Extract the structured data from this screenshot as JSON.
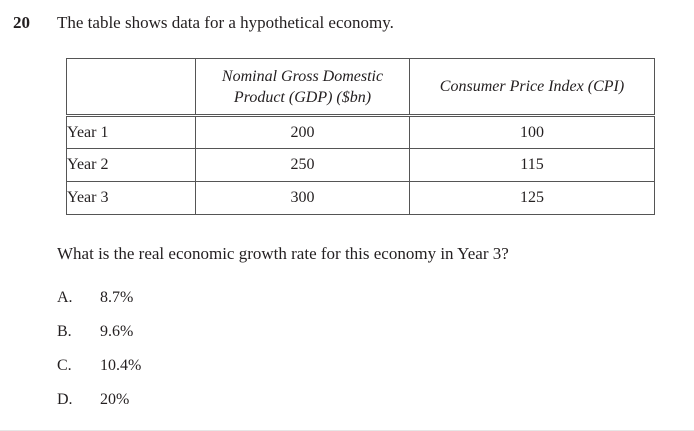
{
  "question": {
    "number": "20",
    "stem": "The table shows data for a hypothetical economy.",
    "prompt": "What is the real economic growth rate for this economy in Year 3?"
  },
  "table": {
    "headers": {
      "blank": "",
      "gdp_line1": "Nominal Gross Domestic",
      "gdp_line2": "Product (GDP) ($bn)",
      "cpi": "Consumer Price Index (CPI)"
    },
    "rows": [
      {
        "label": "Year 1",
        "gdp": "200",
        "cpi": "100"
      },
      {
        "label": "Year 2",
        "gdp": "250",
        "cpi": "115"
      },
      {
        "label": "Year 3",
        "gdp": "300",
        "cpi": "125"
      }
    ]
  },
  "options": [
    {
      "letter": "A.",
      "text": "8.7%"
    },
    {
      "letter": "B.",
      "text": "9.6%"
    },
    {
      "letter": "C.",
      "text": "10.4%"
    },
    {
      "letter": "D.",
      "text": "20%"
    }
  ]
}
